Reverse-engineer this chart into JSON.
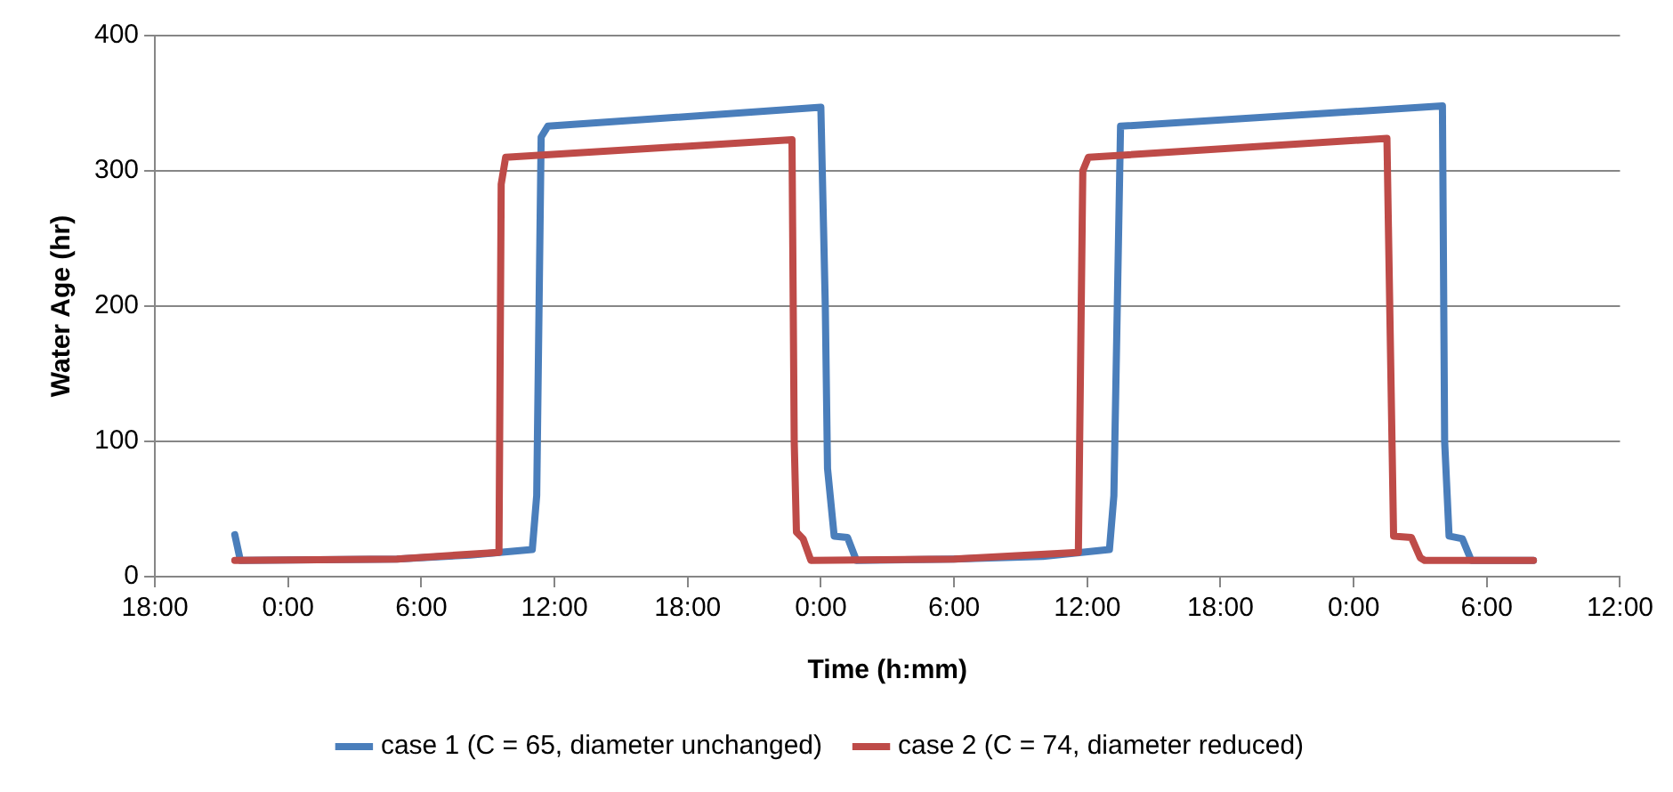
{
  "chart_data": {
    "type": "line",
    "xlabel": "Time (h:mm)",
    "ylabel": "Water Age (hr)",
    "xlim": [
      "2000-01-01T18:00",
      "2000-01-04T12:00"
    ],
    "xticks": [
      {
        "value": "2000-01-01T18:00",
        "label": "18:00"
      },
      {
        "value": "2000-01-02T00:00",
        "label": "0:00"
      },
      {
        "value": "2000-01-02T06:00",
        "label": "6:00"
      },
      {
        "value": "2000-01-02T12:00",
        "label": "12:00"
      },
      {
        "value": "2000-01-02T18:00",
        "label": "18:00"
      },
      {
        "value": "2000-01-03T00:00",
        "label": "0:00"
      },
      {
        "value": "2000-01-03T06:00",
        "label": "6:00"
      },
      {
        "value": "2000-01-03T12:00",
        "label": "12:00"
      },
      {
        "value": "2000-01-03T18:00",
        "label": "18:00"
      },
      {
        "value": "2000-01-04T00:00",
        "label": "0:00"
      },
      {
        "value": "2000-01-04T06:00",
        "label": "6:00"
      },
      {
        "value": "2000-01-04T12:00",
        "label": "12:00"
      }
    ],
    "ylim": [
      0,
      400
    ],
    "yticks": [
      0,
      100,
      200,
      300,
      400
    ],
    "grid": "y",
    "legend": "bottom",
    "marker": "none",
    "line_style": "solid",
    "series": [
      {
        "name": "case 1 (C = 65, diameter unchanged)",
        "color": "#4a7ebb",
        "x": [
          "2000-01-01T21:36",
          "2000-01-01T21:51",
          "2000-01-02T04:54",
          "2000-01-02T08:12",
          "2000-01-02T11:00",
          "2000-01-02T11:12",
          "2000-01-02T11:24",
          "2000-01-02T11:42",
          "2000-01-03T00:00",
          "2000-01-03T00:12",
          "2000-01-03T00:18",
          "2000-01-03T00:36",
          "2000-01-03T01:12",
          "2000-01-03T01:36",
          "2000-01-03T06:00",
          "2000-01-03T10:00",
          "2000-01-03T13:00",
          "2000-01-03T13:12",
          "2000-01-03T13:30",
          "2000-01-04T04:00",
          "2000-01-04T04:06",
          "2000-01-04T04:18",
          "2000-01-04T04:54",
          "2000-01-04T05:18",
          "2000-01-04T08:06"
        ],
        "values": [
          31,
          12,
          13,
          16,
          20,
          60,
          325,
          333,
          347,
          200,
          80,
          30,
          29,
          12,
          13,
          15,
          20,
          60,
          333,
          348,
          100,
          30,
          28,
          12,
          12
        ]
      },
      {
        "name": "case 2 (C = 74, diameter reduced)",
        "color": "#be4b48",
        "x": [
          "2000-01-01T21:36",
          "2000-01-02T04:54",
          "2000-01-02T09:30",
          "2000-01-02T09:36",
          "2000-01-02T09:48",
          "2000-01-02T22:42",
          "2000-01-02T22:48",
          "2000-01-02T22:54",
          "2000-01-02T23:12",
          "2000-01-02T23:33",
          "2000-01-03T06:00",
          "2000-01-03T11:36",
          "2000-01-03T11:48",
          "2000-01-03T12:03",
          "2000-01-04T01:30",
          "2000-01-04T01:48",
          "2000-01-04T02:36",
          "2000-01-04T03:00",
          "2000-01-04T03:12",
          "2000-01-04T08:06"
        ],
        "values": [
          12,
          13,
          18,
          290,
          310,
          323,
          100,
          33,
          28,
          12,
          13,
          18,
          300,
          310,
          324,
          30,
          29,
          14,
          12,
          12
        ]
      }
    ]
  }
}
